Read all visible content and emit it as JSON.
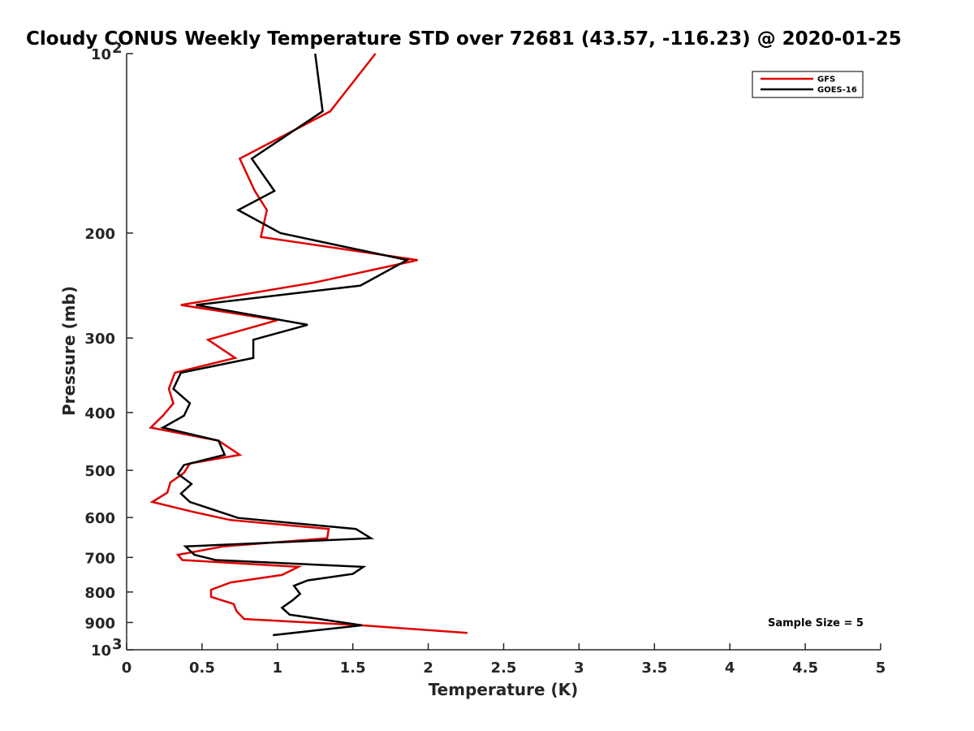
{
  "chart_data": {
    "type": "line",
    "title": "Cloudy CONUS Weekly Temperature STD over 72681 (43.57, -116.23) @ 2020-01-25",
    "xlabel": "Temperature (K)",
    "ylabel": "Pressure (mb)",
    "xlim": [
      0,
      5
    ],
    "ylim": [
      100,
      1000
    ],
    "y_scale": "log",
    "y_reversed": true,
    "grid": false,
    "legend_position": "top-right",
    "x_ticks": [
      "0",
      "0.5",
      "1",
      "1.5",
      "2",
      "2.5",
      "3",
      "3.5",
      "4",
      "4.5",
      "5"
    ],
    "y_ticks": [
      {
        "value": 100,
        "label": "10",
        "sup": "2"
      },
      {
        "value": 200,
        "label": "200",
        "sup": ""
      },
      {
        "value": 300,
        "label": "300",
        "sup": ""
      },
      {
        "value": 400,
        "label": "400",
        "sup": ""
      },
      {
        "value": 500,
        "label": "500",
        "sup": ""
      },
      {
        "value": 600,
        "label": "600",
        "sup": ""
      },
      {
        "value": 700,
        "label": "700",
        "sup": ""
      },
      {
        "value": 800,
        "label": "800",
        "sup": ""
      },
      {
        "value": 900,
        "label": "900",
        "sup": ""
      },
      {
        "value": 1000,
        "label": "10",
        "sup": "3"
      }
    ],
    "series": [
      {
        "name": "GFS",
        "color": "#e00000",
        "points": [
          [
            1.65,
            100
          ],
          [
            1.35,
            125
          ],
          [
            0.75,
            150
          ],
          [
            0.85,
            170
          ],
          [
            0.93,
            183
          ],
          [
            0.89,
            203
          ],
          [
            1.93,
            222
          ],
          [
            1.25,
            242
          ],
          [
            0.36,
            264
          ],
          [
            1.0,
            280
          ],
          [
            0.54,
            302
          ],
          [
            0.72,
            324
          ],
          [
            0.32,
            343
          ],
          [
            0.28,
            365
          ],
          [
            0.31,
            386
          ],
          [
            0.24,
            405
          ],
          [
            0.16,
            424
          ],
          [
            0.61,
            446
          ],
          [
            0.75,
            471
          ],
          [
            0.42,
            487
          ],
          [
            0.38,
            505
          ],
          [
            0.29,
            524
          ],
          [
            0.27,
            545
          ],
          [
            0.17,
            565
          ],
          [
            0.44,
            587
          ],
          [
            0.69,
            606
          ],
          [
            1.34,
            627
          ],
          [
            1.33,
            650
          ],
          [
            0.64,
            671
          ],
          [
            0.34,
            693
          ],
          [
            0.37,
            707
          ],
          [
            1.14,
            726
          ],
          [
            1.03,
            749
          ],
          [
            0.69,
            771
          ],
          [
            0.56,
            793
          ],
          [
            0.56,
            815
          ],
          [
            0.71,
            838
          ],
          [
            0.73,
            862
          ],
          [
            0.78,
            888
          ],
          [
            1.56,
            910
          ],
          [
            2.26,
            937
          ]
        ]
      },
      {
        "name": "GOES-16",
        "color": "#000000",
        "points": [
          [
            1.25,
            100
          ],
          [
            1.3,
            125
          ],
          [
            0.83,
            150
          ],
          [
            0.98,
            170
          ],
          [
            0.74,
            183
          ],
          [
            1.02,
            200
          ],
          [
            1.86,
            222
          ],
          [
            1.55,
            245
          ],
          [
            0.46,
            264
          ],
          [
            1.2,
            285
          ],
          [
            0.84,
            302
          ],
          [
            0.84,
            324
          ],
          [
            0.36,
            343
          ],
          [
            0.31,
            365
          ],
          [
            0.42,
            386
          ],
          [
            0.38,
            405
          ],
          [
            0.24,
            424
          ],
          [
            0.61,
            446
          ],
          [
            0.65,
            471
          ],
          [
            0.38,
            490
          ],
          [
            0.34,
            507
          ],
          [
            0.43,
            527
          ],
          [
            0.36,
            547
          ],
          [
            0.42,
            565
          ],
          [
            0.74,
            601
          ],
          [
            1.52,
            627
          ],
          [
            1.62,
            650
          ],
          [
            0.39,
            671
          ],
          [
            0.45,
            693
          ],
          [
            0.59,
            707
          ],
          [
            1.57,
            726
          ],
          [
            1.5,
            746
          ],
          [
            1.2,
            765
          ],
          [
            1.11,
            781
          ],
          [
            1.15,
            806
          ],
          [
            1.1,
            826
          ],
          [
            1.03,
            850
          ],
          [
            1.08,
            873
          ],
          [
            1.56,
            910
          ],
          [
            0.97,
            945
          ]
        ]
      }
    ],
    "legend": [
      "GFS",
      "GOES-16"
    ],
    "annotations": [
      "Sample Size = 5"
    ]
  }
}
